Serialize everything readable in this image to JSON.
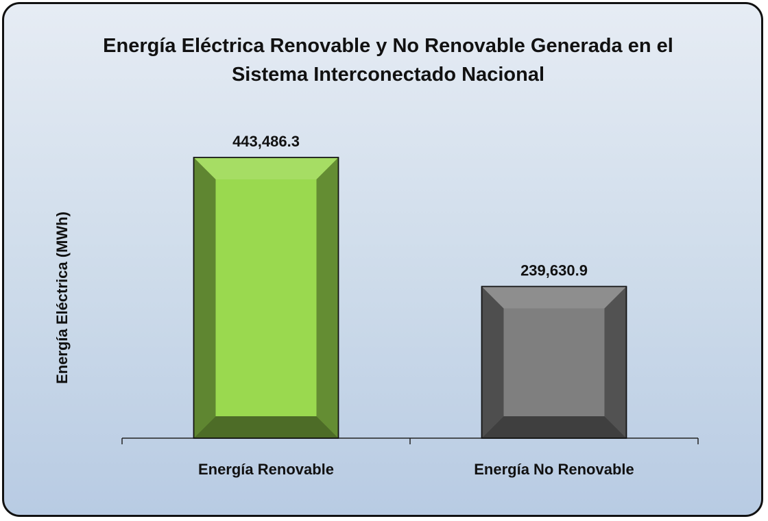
{
  "chart_data": {
    "type": "bar",
    "title": "Energía Eléctrica Renovable y No Renovable Generada en el Sistema Interconectado Nacional",
    "y_label": "Energía Eléctrica (MWh)",
    "categories": [
      "Energía Renovable",
      "Energía No Renovable"
    ],
    "values": [
      443486.3,
      239630.9
    ],
    "value_labels": [
      "443,486.3",
      "239,630.9"
    ],
    "colors": [
      "#9ad94f",
      "#7f7f7f"
    ]
  }
}
